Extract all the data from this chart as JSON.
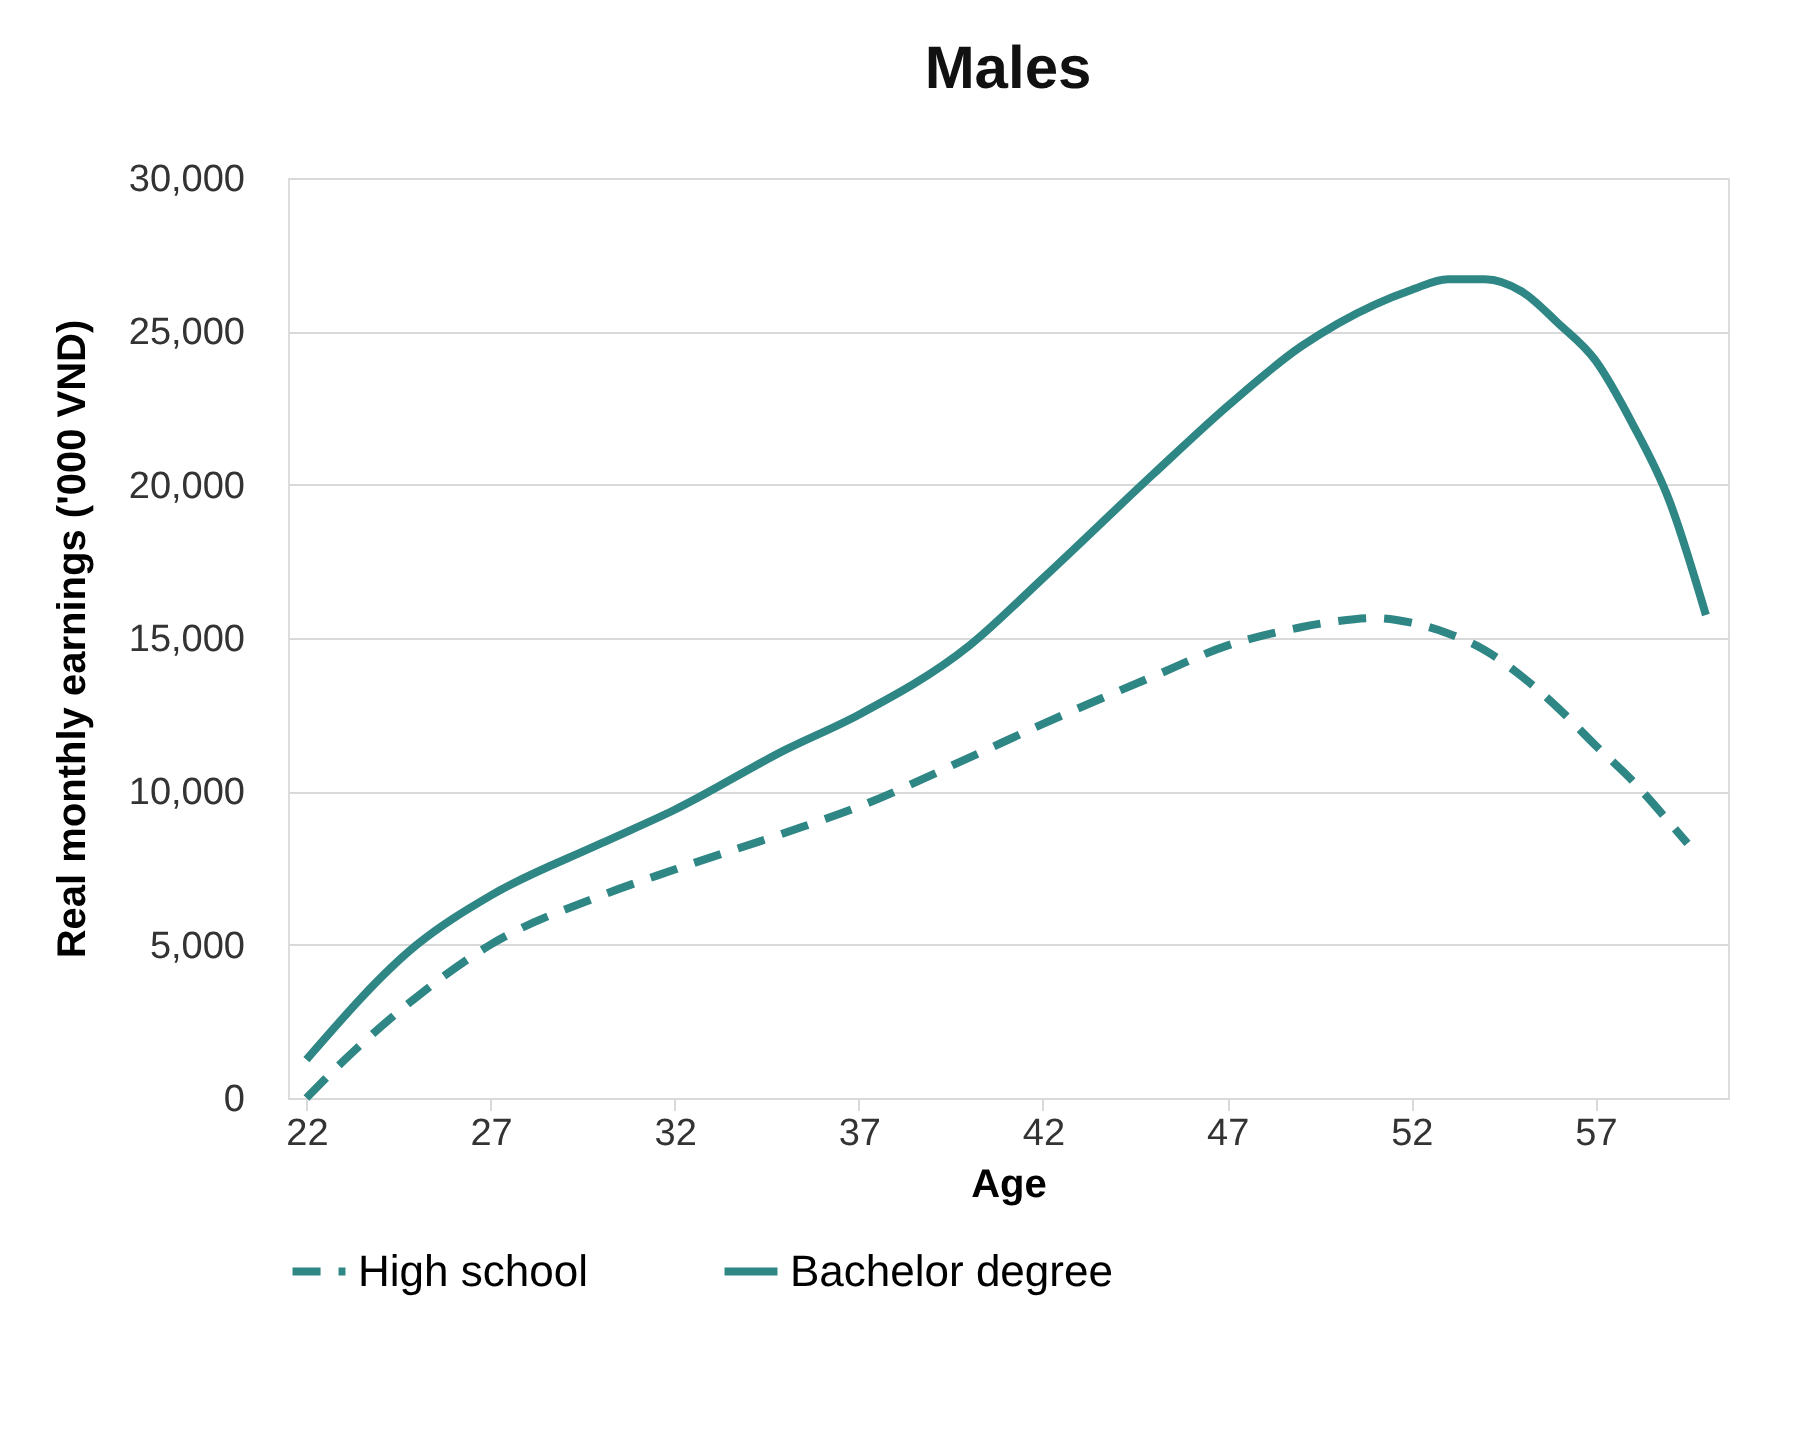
{
  "chart_data": {
    "type": "line",
    "title": "Males",
    "xlabel": "Age",
    "ylabel": "Real monthly earnings ('000 VND)",
    "xlim": [
      21.5,
      60.6
    ],
    "xticks": [
      22,
      27,
      32,
      37,
      42,
      47,
      52,
      57
    ],
    "ylim": [
      0,
      30000
    ],
    "yticks": [
      0,
      {
        "value": 5000,
        "label": "5,000"
      },
      {
        "value": 10000,
        "label": "10,000"
      },
      {
        "value": 15000,
        "label": "15,000"
      },
      {
        "value": 20000,
        "label": "20,000"
      },
      {
        "value": 25000,
        "label": "25,000"
      },
      {
        "value": 30000,
        "label": "30,000"
      }
    ],
    "grid": "y",
    "legend": "bottom",
    "marker": "none",
    "series": [
      {
        "name": "High school",
        "color": "#2e8685",
        "line_style": "dashed",
        "x": [
          22,
          23,
          25,
          27,
          30,
          32,
          35,
          37,
          40,
          42,
          45,
          47,
          49,
          50,
          51,
          52,
          53,
          54,
          55,
          56,
          57,
          58,
          59,
          59.5
        ],
        "values": [
          0,
          1200,
          3300,
          5000,
          6600,
          7450,
          8650,
          9500,
          11100,
          12200,
          13750,
          14750,
          15350,
          15550,
          15650,
          15500,
          15150,
          14600,
          13750,
          12700,
          11500,
          10350,
          9000,
          8300
        ]
      },
      {
        "name": "Bachelor degree",
        "color": "#2e8685",
        "line_style": "solid",
        "x": [
          22,
          25,
          27,
          30,
          32,
          35,
          37,
          40,
          42,
          45,
          47,
          49,
          50,
          52,
          53,
          54,
          55,
          56,
          57,
          58,
          59,
          60
        ],
        "values": [
          1250,
          5000,
          6600,
          8300,
          9400,
          11350,
          12500,
          14750,
          16950,
          20350,
          22550,
          24500,
          25250,
          26350,
          26700,
          26700,
          26300,
          25250,
          24050,
          22000,
          19500,
          15750
        ]
      }
    ]
  }
}
